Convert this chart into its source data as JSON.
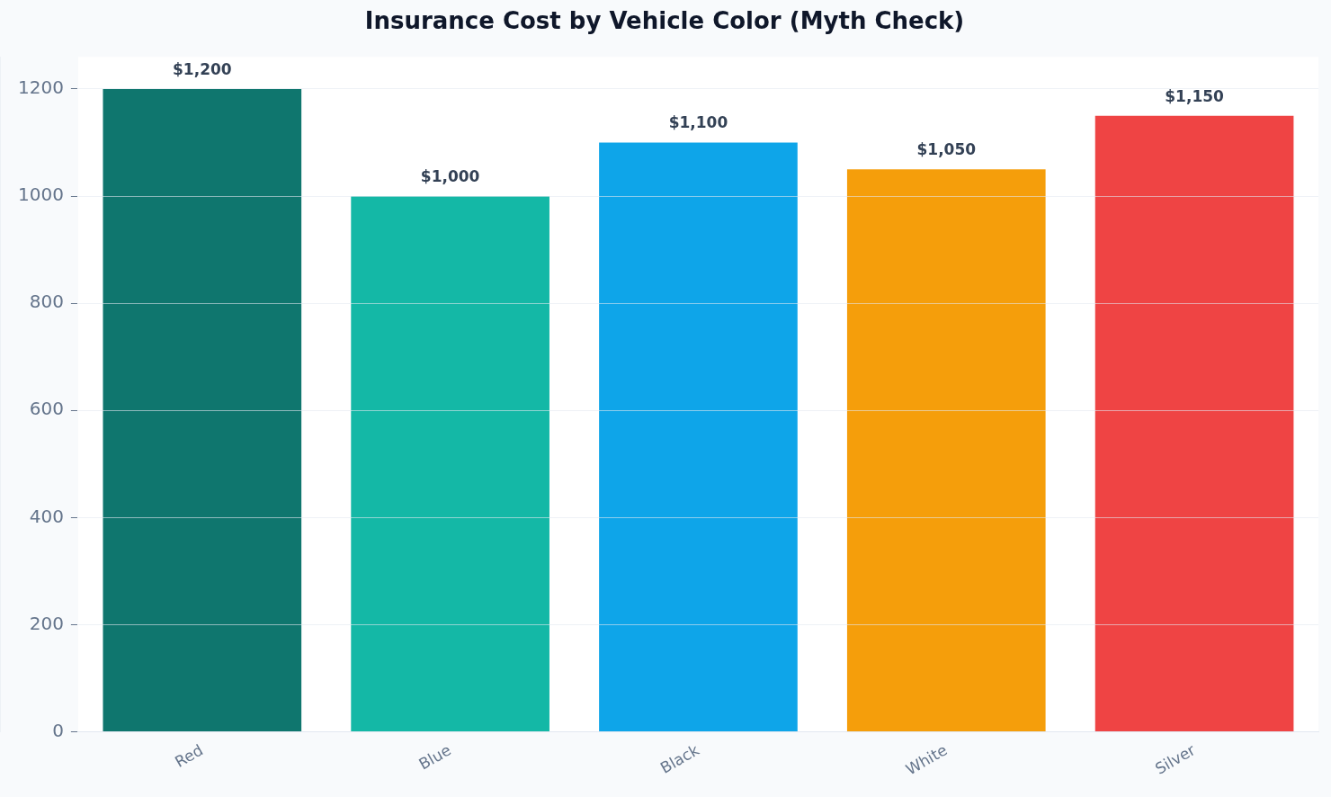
{
  "chart_data": {
    "type": "bar",
    "title": "Insurance Cost by Vehicle Color (Myth Check)",
    "categories": [
      "Red",
      "Blue",
      "Black",
      "White",
      "Silver"
    ],
    "values": [
      1200,
      1000,
      1100,
      1050,
      1150
    ],
    "colors": [
      "#0f766e",
      "#14b8a6",
      "#0ea5e9",
      "#f59e0b",
      "#ef4444"
    ],
    "value_labels": [
      "$1,200",
      "$1,000",
      "$1,100",
      "$1,050",
      "$1,150"
    ],
    "ylim": [
      0,
      1260
    ],
    "yticks": [
      0,
      200,
      400,
      600,
      800,
      1000,
      1200
    ],
    "grid": "y",
    "legend": false
  }
}
